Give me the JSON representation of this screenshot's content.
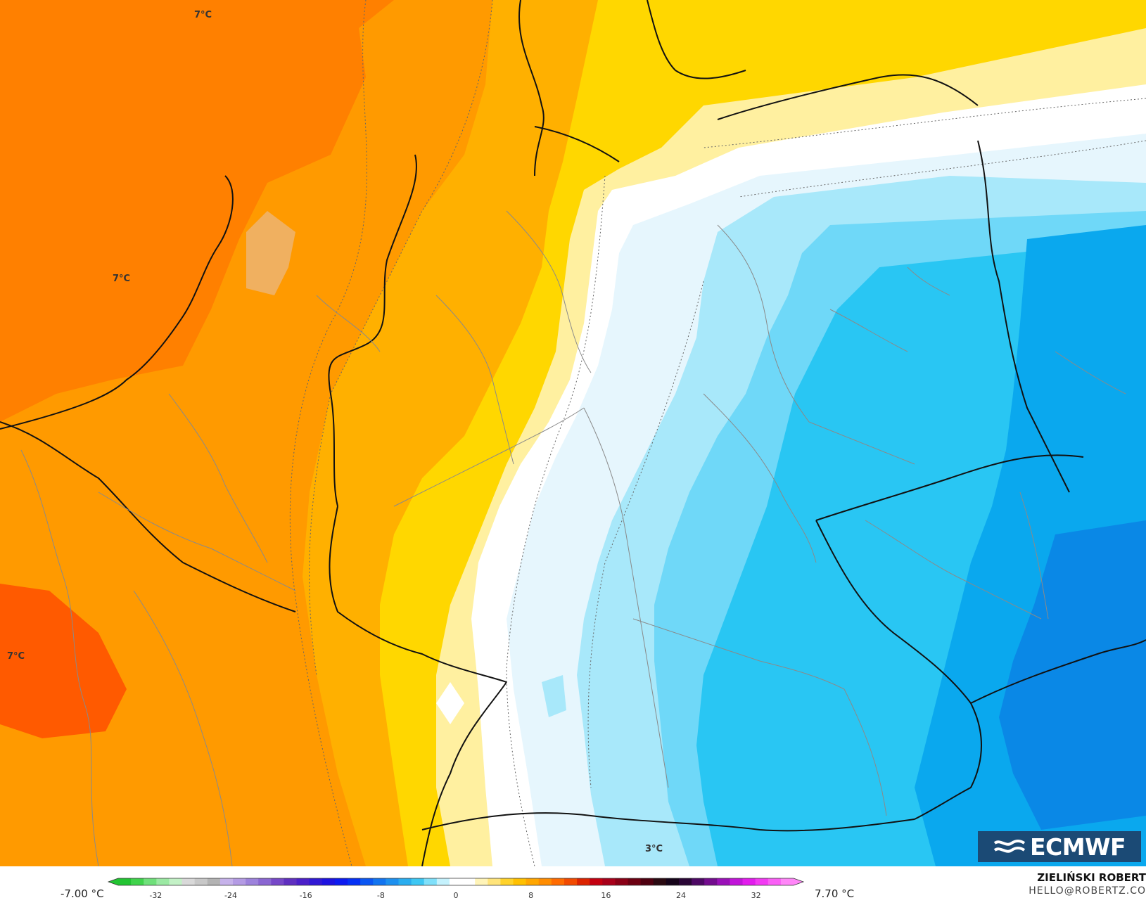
{
  "map": {
    "contour_labels": [
      {
        "id": "label-nw",
        "text": "7°C"
      },
      {
        "id": "label-netherlands",
        "text": "7°C"
      },
      {
        "id": "label-sw",
        "text": "7°C"
      },
      {
        "id": "label-alps",
        "text": "3°C"
      }
    ]
  },
  "legend": {
    "min_label": "-7.00 °C",
    "max_label": "7.70 °C",
    "ticks": [
      "-32",
      "-24",
      "-16",
      "-8",
      "0",
      "8",
      "16",
      "24",
      "32"
    ],
    "colors": [
      "#22c432",
      "#3fd34b",
      "#6fe07a",
      "#9be9a3",
      "#c3f1c6",
      "#d9d9d9",
      "#c8c8c8",
      "#b3b3b3",
      "#c6b2ea",
      "#b49be4",
      "#9d82dc",
      "#8a66d2",
      "#7647c8",
      "#5f2fc0",
      "#4b1fc9",
      "#3018d4",
      "#1d12e0",
      "#0c1af0",
      "#0530f5",
      "#0a56f3",
      "#1274f0",
      "#1d90ef",
      "#2aadef",
      "#3dc7f3",
      "#7fe0fa",
      "#c5f2fd",
      "#ffffff",
      "#ffffff",
      "#fff4b8",
      "#ffe47a",
      "#ffd22a",
      "#ffc000",
      "#ffa600",
      "#ff8c00",
      "#ff6b00",
      "#f24a00",
      "#dc2300",
      "#c40010",
      "#a8001a",
      "#8a0016",
      "#6c0012",
      "#4e0010",
      "#2a0a12",
      "#16041a",
      "#2a0636",
      "#4d0864",
      "#730c8e",
      "#9a10b8",
      "#c114d9",
      "#e21ced",
      "#f23af3",
      "#fa5ff6",
      "#ff86f8"
    ],
    "units": "°C"
  },
  "author": {
    "name": "ZIELIŃSKI ROBERT",
    "contact": "HELLO@ROBERTZ.CO"
  },
  "logo": {
    "text": "ECMWF"
  },
  "palette": {
    "orange_dark": "#ff8000",
    "orange": "#ff9a00",
    "amber": "#ffb000",
    "yellow": "#ffd700",
    "light_yellow": "#fff0a0",
    "white": "#ffffff",
    "ice": "#e6f6fd",
    "light_cyan": "#a8e8fa",
    "cyan": "#6fd8f8",
    "sky": "#29c6f3",
    "blue": "#0aa8ee",
    "deep_blue": "#0a88e6",
    "red_orange": "#ff5a00",
    "border_color": "#111111",
    "admin_color": "#8a8a8a"
  }
}
